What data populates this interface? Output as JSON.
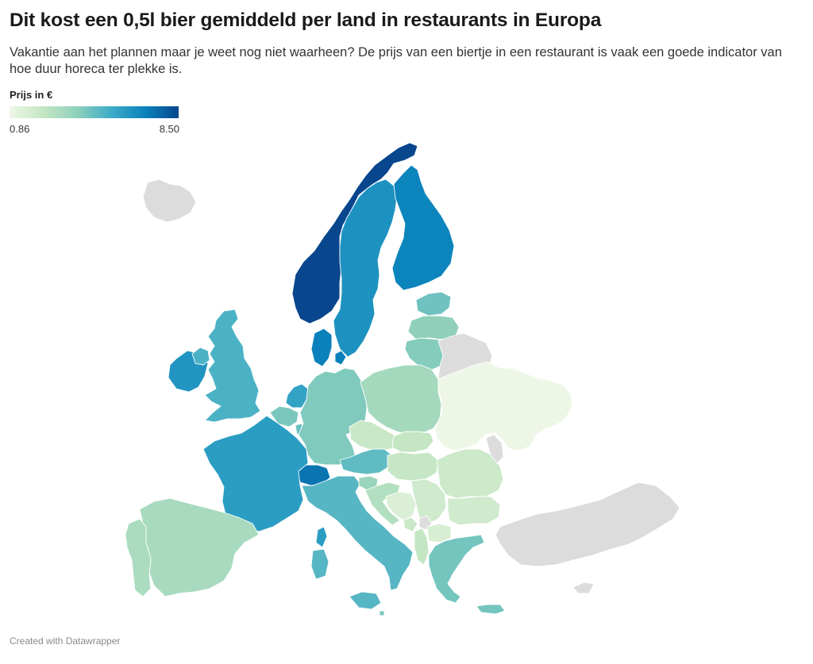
{
  "title": "Dit kost een 0,5l bier gemiddeld per land in restaurants in Europa",
  "subtitle": "Vakantie aan het plannen maar je weet nog niet waarheen? De prijs van een biertje in een restaurant is vaak een goede indicator van hoe duur horeca ter plekke is.",
  "legend": {
    "title": "Prijs in €",
    "min_label": "0.86",
    "max_label": "8.50",
    "min": 0.86,
    "max": 8.5,
    "colors": [
      "#eef7e6",
      "#c4e6c3",
      "#8fd0bb",
      "#3eacc8",
      "#0a82bb",
      "#08468d"
    ]
  },
  "no_data_color": "#dcdcdc",
  "footer": "Created with Datawrapper",
  "chart_data": {
    "type": "choropleth",
    "region": "Europe",
    "unit": "€",
    "color_scale": {
      "min": 0.86,
      "max": 8.5
    },
    "no_data": [
      "Iceland",
      "Belarus",
      "Moldova",
      "Kosovo",
      "Turkey",
      "Cyprus"
    ],
    "values": [
      {
        "region": "Norway",
        "value": 8.5
      },
      {
        "region": "Denmark",
        "value": 7.0
      },
      {
        "region": "Finland",
        "value": 6.9
      },
      {
        "region": "Sweden",
        "value": 6.4
      },
      {
        "region": "Ireland",
        "value": 6.3
      },
      {
        "region": "Switzerland",
        "value": 7.3
      },
      {
        "region": "Netherlands",
        "value": 5.8
      },
      {
        "region": "France",
        "value": 6.0
      },
      {
        "region": "United Kingdom",
        "value": 5.2
      },
      {
        "region": "Italy",
        "value": 5.0
      },
      {
        "region": "Austria",
        "value": 4.8
      },
      {
        "region": "Estonia",
        "value": 4.5
      },
      {
        "region": "Latvia",
        "value": 3.9
      },
      {
        "region": "Lithuania",
        "value": 4.1
      },
      {
        "region": "Belgium",
        "value": 4.3
      },
      {
        "region": "Luxembourg",
        "value": 4.6
      },
      {
        "region": "Germany",
        "value": 4.2
      },
      {
        "region": "Greece",
        "value": 4.4
      },
      {
        "region": "Malta",
        "value": 4.3
      },
      {
        "region": "Slovenia",
        "value": 3.6
      },
      {
        "region": "Poland",
        "value": 3.3
      },
      {
        "region": "Portugal",
        "value": 3.1
      },
      {
        "region": "Spain",
        "value": 3.2
      },
      {
        "region": "Croatia",
        "value": 2.9
      },
      {
        "region": "Czechia",
        "value": 2.2
      },
      {
        "region": "Slovakia",
        "value": 2.4
      },
      {
        "region": "Hungary",
        "value": 2.3
      },
      {
        "region": "Romania",
        "value": 2.1
      },
      {
        "region": "Bulgaria",
        "value": 2.0
      },
      {
        "region": "Serbia",
        "value": 2.0
      },
      {
        "region": "Bosnia and Herzegovina",
        "value": 1.6
      },
      {
        "region": "Montenegro",
        "value": 2.2
      },
      {
        "region": "North Macedonia",
        "value": 1.7
      },
      {
        "region": "Albania",
        "value": 2.4
      },
      {
        "region": "Ukraine",
        "value": 0.86
      }
    ]
  }
}
